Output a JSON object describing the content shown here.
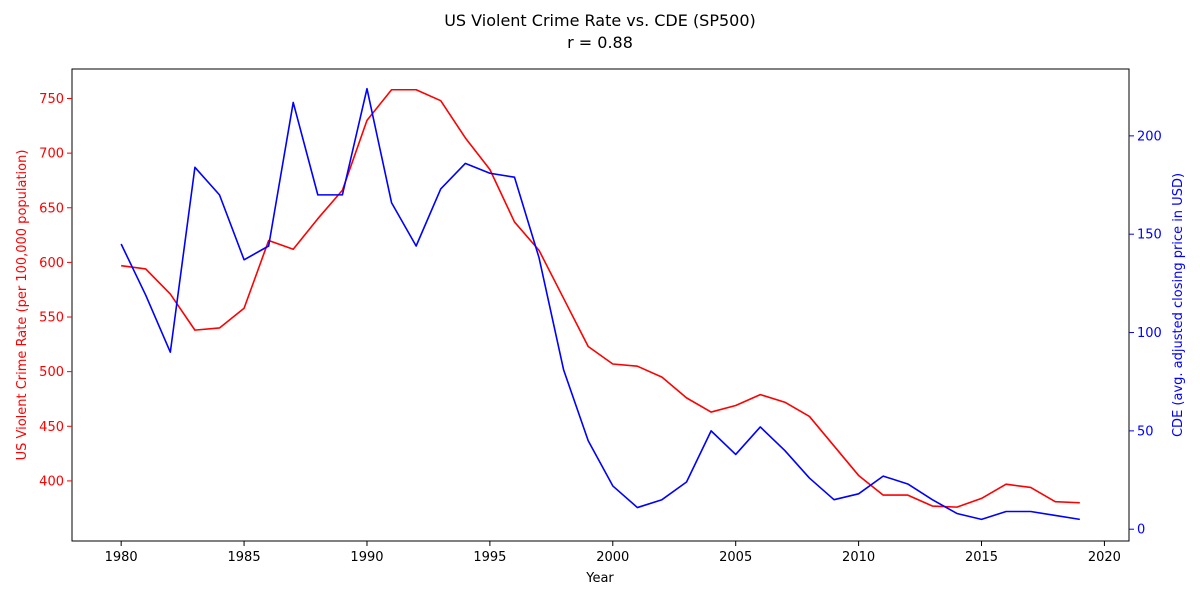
{
  "chart_data": {
    "type": "line",
    "title": "US Violent Crime Rate vs. CDE (SP500)",
    "subtitle": "r = 0.88",
    "xlabel": "Year",
    "ylabel_left": "US Violent Crime Rate (per 100,000 population)",
    "ylabel_right": "CDE (avg. adjusted closing price in USD)",
    "xlim": [
      1978,
      2021
    ],
    "ylim_left": [
      345,
      777
    ],
    "ylim_right": [
      -6,
      234
    ],
    "x_ticks": [
      1980,
      1985,
      1990,
      1995,
      2000,
      2005,
      2010,
      2015,
      2020
    ],
    "y_ticks_left": [
      400,
      450,
      500,
      550,
      600,
      650,
      700,
      750
    ],
    "y_ticks_right": [
      0,
      50,
      100,
      150,
      200
    ],
    "grid": false,
    "legend": "none",
    "x": [
      1980,
      1981,
      1982,
      1983,
      1984,
      1985,
      1986,
      1987,
      1988,
      1989,
      1990,
      1991,
      1992,
      1993,
      1994,
      1995,
      1996,
      1997,
      1998,
      1999,
      2000,
      2001,
      2002,
      2003,
      2004,
      2005,
      2006,
      2007,
      2008,
      2009,
      2010,
      2011,
      2012,
      2013,
      2014,
      2015,
      2016,
      2017,
      2018,
      2019
    ],
    "series": [
      {
        "axis": "left",
        "color": "#ff0000",
        "values": [
          597,
          594,
          571,
          538,
          540,
          558,
          620,
          612,
          640,
          666,
          730,
          758,
          758,
          748,
          714,
          685,
          637,
          611,
          567,
          523,
          507,
          505,
          495,
          476,
          463,
          469,
          479,
          472,
          459,
          432,
          405,
          387,
          387,
          377,
          376,
          384,
          397,
          394,
          381,
          380
        ]
      },
      {
        "axis": "right",
        "color": "#0000ff",
        "values": [
          145,
          119,
          90,
          184,
          170,
          137,
          144,
          217,
          170,
          170,
          224,
          166,
          144,
          173,
          186,
          181,
          179,
          138,
          81,
          45,
          22,
          11,
          15,
          24,
          50,
          38,
          52,
          40,
          26,
          15,
          18,
          27,
          23,
          15,
          8,
          5,
          9,
          9,
          7,
          5
        ]
      }
    ]
  }
}
